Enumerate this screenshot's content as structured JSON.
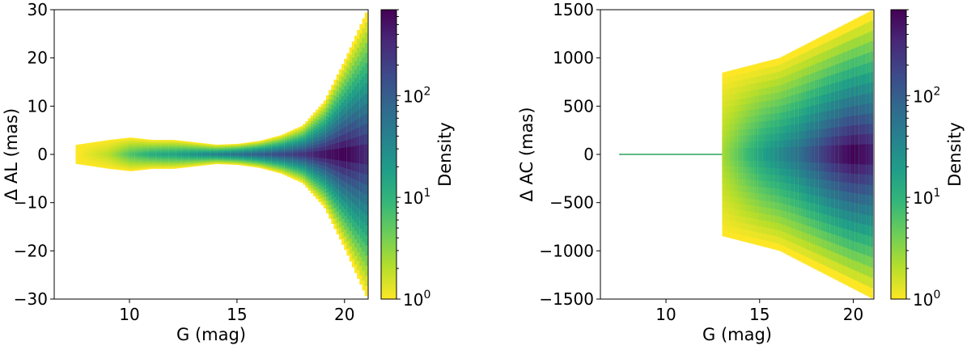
{
  "colors": {
    "colormap": [
      "#fde725",
      "#b5de2b",
      "#6ece58",
      "#35b779",
      "#1f9e89",
      "#26828e",
      "#31688e",
      "#3e4989",
      "#482878",
      "#440154"
    ],
    "narrow_line": "#2ca35c"
  },
  "chart_data": [
    {
      "type": "heatmap",
      "subtype": "2d-density-histogram",
      "xlabel": "G (mag)",
      "ylabel": "Δ AL (mas)",
      "xlim": [
        6.5,
        21.1
      ],
      "ylim": [
        -30,
        30
      ],
      "xticks": [
        10,
        15,
        20
      ],
      "xtick_labels": [
        "10",
        "15",
        "20"
      ],
      "yticks": [
        -30,
        -20,
        -10,
        0,
        10,
        20,
        30
      ],
      "ytick_labels": [
        "−30",
        "−20",
        "−10",
        "0",
        "10",
        "20",
        "30"
      ],
      "colorbar": {
        "label": "Density",
        "scale": "log",
        "range": [
          1,
          700
        ],
        "ticks": [
          1,
          10,
          100
        ],
        "tick_labels": [
          {
            "base": "10",
            "exp": "0"
          },
          {
            "base": "10",
            "exp": "1"
          },
          {
            "base": "10",
            "exp": "2"
          }
        ],
        "colormap": "viridis_r"
      },
      "density_envelope": {
        "g": [
          7.5,
          9,
          10,
          11,
          12,
          13,
          14,
          15,
          16,
          17,
          18,
          19,
          20,
          21
        ],
        "spread_mas": [
          2,
          3,
          3.5,
          3,
          3,
          2.5,
          2,
          2.2,
          2.8,
          4,
          6,
          11,
          20,
          30
        ],
        "log_peak_density": [
          0.0,
          0.3,
          0.8,
          1.1,
          1.2,
          1.4,
          1.6,
          1.8,
          2.0,
          2.2,
          2.4,
          2.7,
          2.85,
          2.5
        ]
      },
      "grid": false
    },
    {
      "type": "heatmap",
      "subtype": "2d-density-histogram",
      "xlabel": "G (mag)",
      "ylabel": "Δ AC (mas)",
      "xlim": [
        6.5,
        21.1
      ],
      "ylim": [
        -1500,
        1500
      ],
      "xticks": [
        10,
        15,
        20
      ],
      "xtick_labels": [
        "10",
        "15",
        "20"
      ],
      "yticks": [
        -1500,
        -1000,
        -500,
        0,
        500,
        1000,
        1500
      ],
      "ytick_labels": [
        "−1500",
        "−1000",
        "−500",
        "0",
        "500",
        "1000",
        "1500"
      ],
      "colorbar": {
        "label": "Density",
        "scale": "log",
        "range": [
          1,
          700
        ],
        "ticks": [
          1,
          10,
          100
        ],
        "tick_labels": [
          {
            "base": "10",
            "exp": "0"
          },
          {
            "base": "10",
            "exp": "1"
          },
          {
            "base": "10",
            "exp": "2"
          }
        ],
        "colormap": "viridis_r"
      },
      "density_envelope": {
        "g": [
          13,
          14,
          15,
          16,
          17,
          18,
          19,
          20,
          21
        ],
        "spread_mas": [
          850,
          900,
          950,
          1000,
          1100,
          1200,
          1300,
          1400,
          1500
        ],
        "log_peak_density": [
          0.4,
          0.8,
          1.2,
          1.5,
          1.8,
          2.2,
          2.6,
          2.85,
          2.6
        ]
      },
      "narrow_line_g_range": [
        7.5,
        13
      ],
      "grid": false
    }
  ]
}
